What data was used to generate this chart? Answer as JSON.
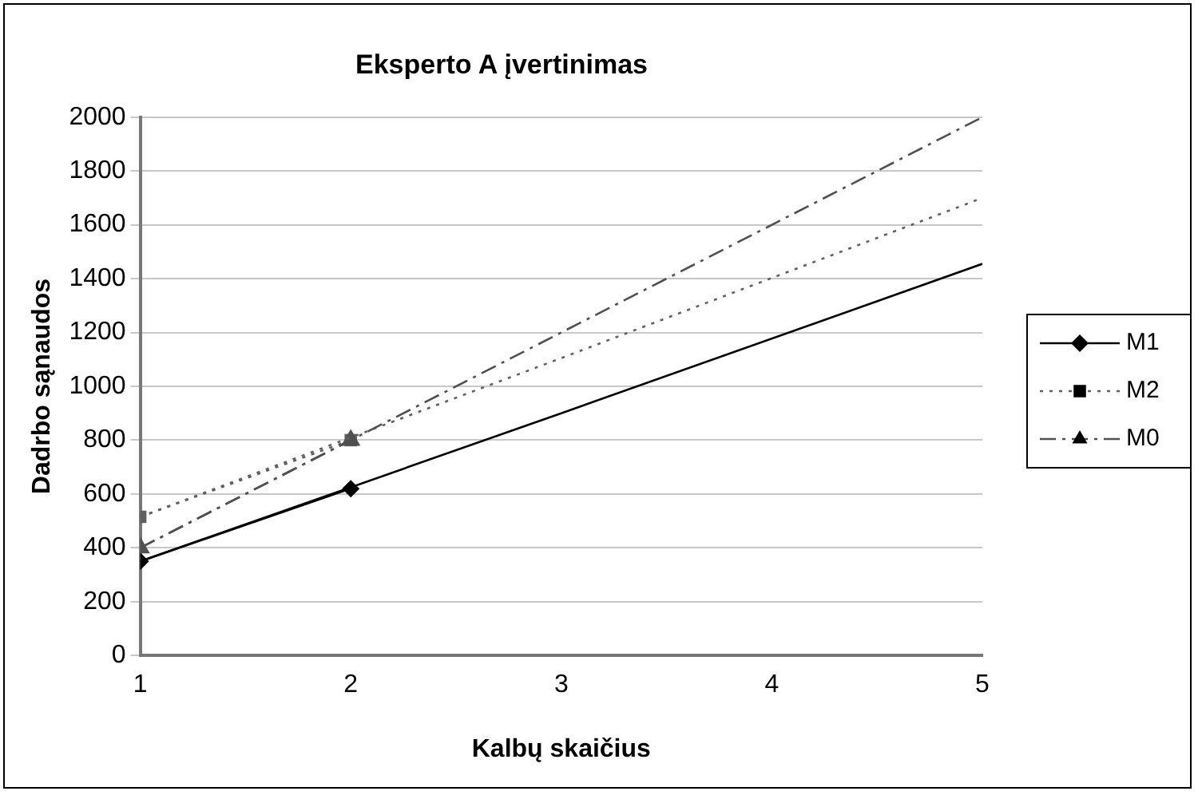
{
  "chart_data": {
    "type": "line",
    "title": "Eksperto A įvertinimas",
    "xlabel": "Kalbų skaičius",
    "ylabel": "Dadrbo sąnaudos",
    "x": [
      1,
      2
    ],
    "xlim": [
      1,
      5
    ],
    "xticks": [
      1,
      2,
      3,
      4,
      5
    ],
    "ylim": [
      0,
      2000
    ],
    "yticks": [
      0,
      200,
      400,
      600,
      800,
      1000,
      1200,
      1400,
      1600,
      1800,
      2000
    ],
    "grid": "y",
    "legend": "right",
    "series": [
      {
        "name": "M1",
        "color": "#000000",
        "values": [
          350,
          620
        ],
        "marker": "diamond",
        "line_style": "solid"
      },
      {
        "name": "M2",
        "color": "#606060",
        "values": [
          515,
          800
        ],
        "marker": "square",
        "line_style": "dotted"
      },
      {
        "name": "M0",
        "color": "#505050",
        "values": [
          400,
          800
        ],
        "marker": "triangle",
        "line_style": "dashed"
      },
      {
        "type": "line",
        "x": [
          1,
          3,
          5
        ],
        "color": "#000000",
        "values": [
          350,
          900,
          1455
        ],
        "marker": "none",
        "line_style": "solid"
      },
      {
        "type": "line",
        "x": [
          1,
          3,
          5
        ],
        "color": "#606060",
        "values": [
          515,
          1105,
          1700
        ],
        "marker": "none",
        "line_style": "dotted"
      },
      {
        "type": "line",
        "x": [
          1,
          3,
          5
        ],
        "color": "#505050",
        "values": [
          400,
          1200,
          2000
        ],
        "marker": "none",
        "line_style": "dashed"
      }
    ]
  }
}
